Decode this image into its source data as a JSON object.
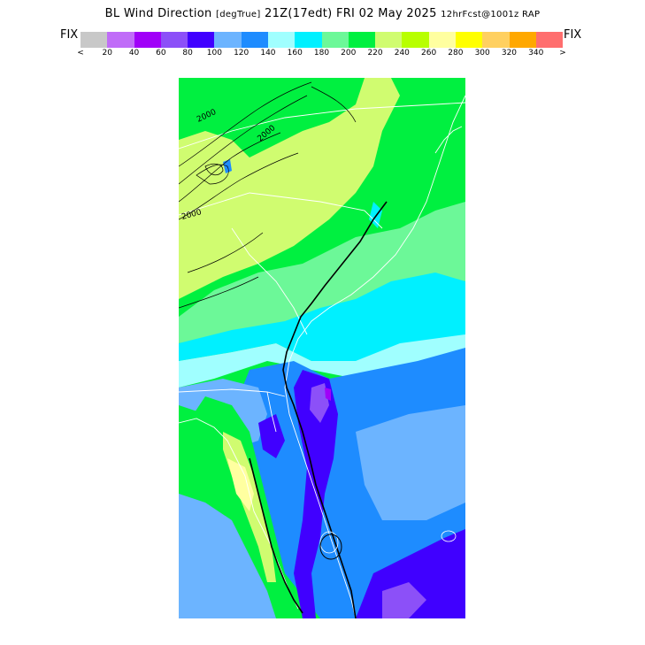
{
  "title": {
    "main": "BL Wind Direction",
    "units": "[degTrue]",
    "time": "21Z(17edt) FRI 02 May 2025",
    "forecast": "12hrFcst@1001z RAP"
  },
  "legend": {
    "left_label": "FIX",
    "right_label": "FIX",
    "colors": [
      "#c8c8c8",
      "#c06cf8",
      "#a000f8",
      "#8c50f8",
      "#4000ff",
      "#6cb4ff",
      "#1e8cff",
      "#a0ffff",
      "#00f0ff",
      "#6cf898",
      "#00f040",
      "#d0fc70",
      "#b8ff00",
      "#ffffa0",
      "#ffff00",
      "#ffd060",
      "#ffa800",
      "#ff6e6e"
    ],
    "tick_labels": [
      "<",
      "20",
      "40",
      "60",
      "80",
      "100",
      "120",
      "140",
      "160",
      "180",
      "200",
      "220",
      "240",
      "260",
      "280",
      "300",
      "320",
      "340",
      ">"
    ]
  },
  "map": {
    "contour_label": "2000",
    "colors": {
      "v80": "#4000ff",
      "v60": "#8c50f8",
      "v40": "#a000f8",
      "v100": "#6cb4ff",
      "v120": "#1e8cff",
      "v160": "#00f0ff",
      "v180": "#6cf898",
      "v200": "#00f040",
      "v220": "#d0fc70",
      "v260": "#ffffa0"
    }
  }
}
